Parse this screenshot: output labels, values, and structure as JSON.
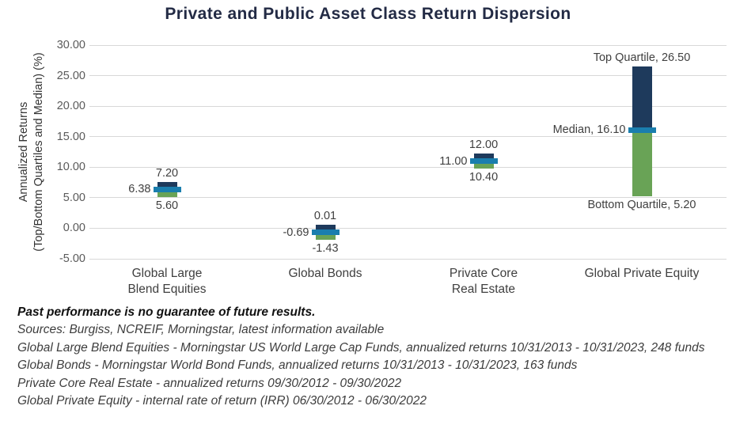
{
  "title": "Private and Public Asset Class Return Dispersion",
  "chart_data": {
    "type": "bar",
    "subtype": "floating-quartile-range-bars",
    "title": "Private and Public Asset Class Return Dispersion",
    "y_axis": {
      "label_line1": "Annualized Returns",
      "label_line2": "(Top/Bottom Quartiles and Median) (%)",
      "ylim": [
        -5,
        30
      ],
      "tick_values": [
        30,
        25,
        20,
        15,
        10,
        5,
        0,
        -5
      ],
      "tick_labels": [
        "30.00",
        "25.00",
        "20.00",
        "15.00",
        "10.00",
        "5.00",
        "0.00",
        "-5.00"
      ],
      "grid": true
    },
    "legend": "none",
    "categories": [
      {
        "label_lines": [
          "Global Large",
          "Blend Equities"
        ],
        "top_quartile": 7.2,
        "median": 6.38,
        "bottom_quartile": 5.6,
        "top_label": "7.20",
        "median_label": "6.38",
        "bottom_label": "5.60"
      },
      {
        "label_lines": [
          "Global Bonds"
        ],
        "top_quartile": 0.01,
        "median": -0.69,
        "bottom_quartile": -1.43,
        "top_label": "0.01",
        "median_label": "-0.69",
        "bottom_label": "-1.43"
      },
      {
        "label_lines": [
          "Private Core",
          "Real Estate"
        ],
        "top_quartile": 12.0,
        "median": 11.0,
        "bottom_quartile": 10.4,
        "top_label": "12.00",
        "median_label": "11.00",
        "bottom_label": "10.40"
      },
      {
        "label_lines": [
          "Global Private Equity"
        ],
        "top_quartile": 26.5,
        "median": 16.1,
        "bottom_quartile": 5.2,
        "top_label": "Top Quartile, 26.50",
        "median_label": "Median, 16.10",
        "bottom_label": "Bottom Quartile, 5.20"
      }
    ],
    "colors": {
      "top_quartile_bar": "#1e3a5c",
      "bottom_quartile_bar": "#69a356",
      "median_band": "#1a7eae",
      "gridline": "#d8d8d8",
      "tick_label": "#5a5a5a",
      "data_label": "#3f3f3f",
      "title": "#232b45"
    }
  },
  "footnotes": {
    "disclaimer": "Past performance is no guarantee of future results.",
    "lines": [
      "Sources: Burgiss, NCREIF, Morningstar, latest information available",
      "Global Large Blend Equities - Morningstar US World Large Cap Funds, annualized returns 10/31/2013 - 10/31/2023, 248 funds",
      "Global Bonds - Morningstar World Bond Funds, annualized returns 10/31/2013 - 10/31/2023, 163 funds",
      "Private Core Real Estate - annualized returns 09/30/2012 - 09/30/2022",
      "Global Private Equity - internal rate of return (IRR) 06/30/2012 - 06/30/2022"
    ]
  }
}
